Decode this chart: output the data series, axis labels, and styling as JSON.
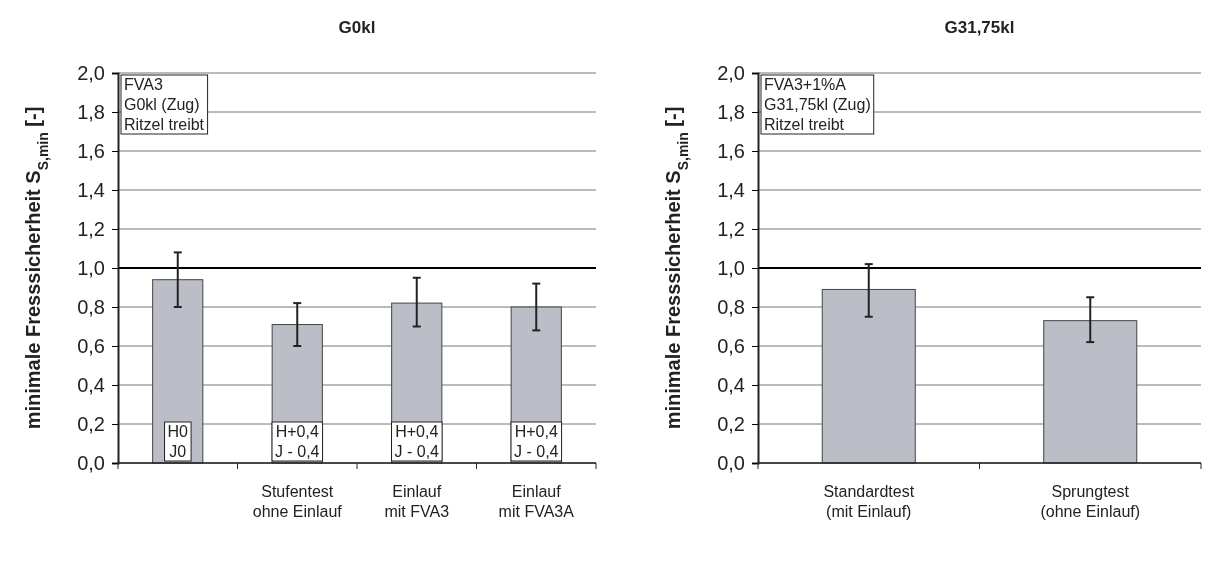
{
  "chart_data": [
    {
      "type": "bar",
      "title": "G0kl",
      "ylabel": "minimale Fresssicherheit S$_{S,min}$ [-]",
      "categories": [
        null,
        "Stufentest\nohne Einlauf",
        "Einlauf\nmit FVA3",
        "Einlauf\nmit FVA3A"
      ],
      "values": [
        0.94,
        0.71,
        0.82,
        0.8
      ],
      "errors": [
        [
          0.8,
          1.08
        ],
        [
          0.6,
          0.82
        ],
        [
          0.7,
          0.95
        ],
        [
          0.68,
          0.92
        ]
      ],
      "color": "#bbbec6",
      "ylim": [
        0,
        2
      ],
      "yticks": [
        {
          "value": 0,
          "label": "0,0"
        },
        {
          "value": 0.2,
          "label": "0,2"
        },
        {
          "value": 0.4,
          "label": "0,4"
        },
        {
          "value": 0.6,
          "label": "0,6"
        },
        {
          "value": 0.8,
          "label": "0,8"
        },
        {
          "value": 1,
          "label": "1,0"
        },
        {
          "value": 1.2,
          "label": "1,2"
        },
        {
          "value": 1.4,
          "label": "1,4"
        },
        {
          "value": 1.6,
          "label": "1,6"
        },
        {
          "value": 1.8,
          "label": "1,8"
        },
        {
          "value": 2,
          "label": "2,0"
        }
      ],
      "grid": "y",
      "ref_lines": [
        {
          "axis": "y",
          "value": 1,
          "color": "#000000"
        }
      ],
      "annotations": [
        "FVA3\nG0kl (Zug)\nRitzel treibt",
        "H0\nJ0",
        "H+0,4\nJ - 0,4",
        "H+0,4\nJ - 0,4",
        "H+0,4\nJ - 0,4"
      ]
    },
    {
      "type": "bar",
      "title": "G31,75kl",
      "ylabel": "minimale Fresssicherheit S$_{S,min}$ [-]",
      "categories": [
        "Standardtest\n(mit Einlauf)",
        "Sprungtest\n(ohne Einlauf)"
      ],
      "values": [
        0.89,
        0.73
      ],
      "errors": [
        [
          0.75,
          1.02
        ],
        [
          0.62,
          0.85
        ]
      ],
      "color": "#bbbec6",
      "ylim": [
        0,
        2
      ],
      "yticks": [
        {
          "value": 0,
          "label": "0,0"
        },
        {
          "value": 0.2,
          "label": "0,2"
        },
        {
          "value": 0.4,
          "label": "0,4"
        },
        {
          "value": 0.6,
          "label": "0,6"
        },
        {
          "value": 0.8,
          "label": "0,8"
        },
        {
          "value": 1,
          "label": "1,0"
        },
        {
          "value": 1.2,
          "label": "1,2"
        },
        {
          "value": 1.4,
          "label": "1,4"
        },
        {
          "value": 1.6,
          "label": "1,6"
        },
        {
          "value": 1.8,
          "label": "1,8"
        },
        {
          "value": 2,
          "label": "2,0"
        }
      ],
      "grid": "y",
      "ref_lines": [
        {
          "axis": "y",
          "value": 1,
          "color": "#000000"
        }
      ],
      "annotations": [
        "FVA3+1%A\nG31,75kl (Zug)\nRitzel treibt"
      ]
    }
  ]
}
